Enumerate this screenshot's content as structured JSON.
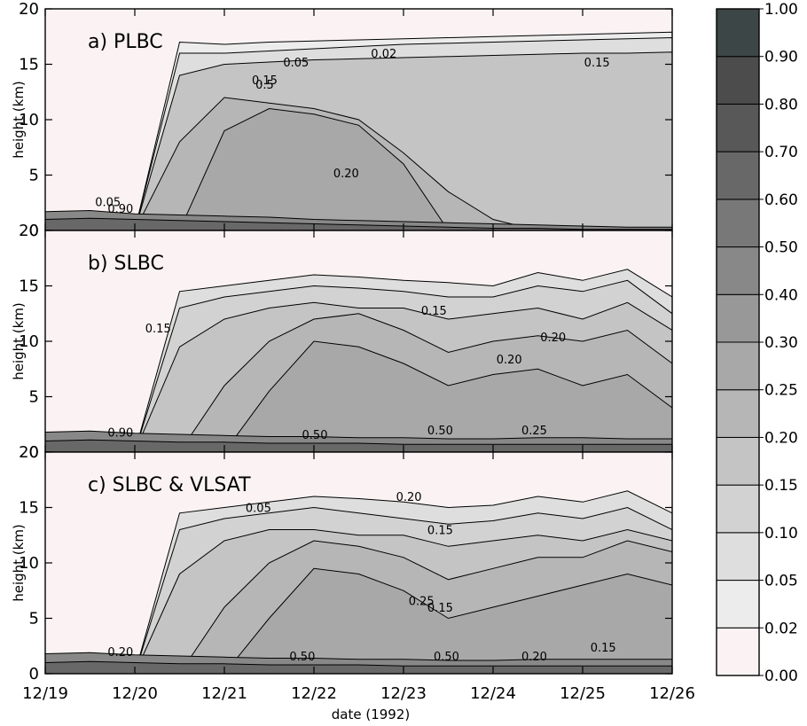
{
  "chart_data": {
    "type": "contour",
    "xlabel": "date (1992)",
    "ylabel": "height (km)",
    "x_ticks": [
      "12/19",
      "12/20",
      "12/21",
      "12/22",
      "12/23",
      "12/24",
      "12/25",
      "12/26"
    ],
    "xlim": [
      "12/19",
      "12/26"
    ],
    "y_ticks": [
      "0",
      "5",
      "10",
      "15",
      "20"
    ],
    "ylim": [
      0,
      20
    ],
    "colorbar": {
      "levels": [
        "0.00",
        "0.02",
        "0.05",
        "0.10",
        "0.15",
        "0.20",
        "0.25",
        "0.30",
        "0.40",
        "0.50",
        "0.60",
        "0.70",
        "0.80",
        "0.90",
        "1.00"
      ],
      "colors": [
        "#fbf3f3",
        "#ececec",
        "#dedede",
        "#d2d2d2",
        "#c4c4c4",
        "#b6b6b6",
        "#a8a8a8",
        "#989898",
        "#888888",
        "#787878",
        "#686868",
        "#585858",
        "#4c4c4c",
        "#3d4646"
      ]
    },
    "panels": [
      {
        "title": "a)   PLBC",
        "contour_labels": [
          "0.05",
          "0.02",
          "0.15",
          "0.15",
          "0.5",
          "0.20",
          "0.05",
          "0.90"
        ],
        "layers": [
          {
            "level": "0.02",
            "top_km": [
              0,
              0,
              0,
              17.0,
              16.8,
              17.0,
              17.1,
              17.2,
              17.3,
              17.4,
              17.5,
              17.6,
              17.7,
              17.8,
              17.9
            ]
          },
          {
            "level": "0.05",
            "top_km": [
              0,
              0,
              0,
              16.0,
              16.0,
              16.2,
              16.4,
              16.6,
              16.8,
              16.9,
              17.0,
              17.1,
              17.2,
              17.3,
              17.4
            ]
          },
          {
            "level": "0.15",
            "top_km": [
              0,
              0,
              0,
              14.0,
              15.0,
              15.2,
              15.4,
              15.5,
              15.6,
              15.7,
              15.8,
              15.9,
              16.0,
              16.0,
              16.1
            ]
          },
          {
            "level": "0.20",
            "top_km": [
              0,
              0,
              0,
              8.0,
              12.0,
              11.5,
              11.0,
              10.0,
              7.0,
              3.5,
              1.0,
              0,
              0,
              0,
              0
            ]
          },
          {
            "level": "0.25",
            "top_km": [
              0,
              0,
              0,
              0,
              9.0,
              11.0,
              10.5,
              9.5,
              6.0,
              0,
              0,
              0,
              0,
              0,
              0
            ]
          },
          {
            "level": "0.40",
            "top_km": [
              1.7,
              1.8,
              1.5,
              1.4,
              1.3,
              1.2,
              1.0,
              0.9,
              0.8,
              0.7,
              0.6,
              0.5,
              0.4,
              0.3,
              0.3
            ]
          },
          {
            "level": "0.60",
            "top_km": [
              1.0,
              1.1,
              1.0,
              0.9,
              0.8,
              0.7,
              0.6,
              0.5,
              0.4,
              0.3,
              0.2,
              0.2,
              0.1,
              0.1,
              0.1
            ]
          }
        ]
      },
      {
        "title": "b)   SLBC",
        "contour_labels": [
          "0.15",
          "0.20",
          "0.15",
          "0.20",
          "0.50",
          "0.50",
          "0.25",
          "0.90"
        ],
        "layers": [
          {
            "level": "0.05",
            "top_km": [
              0,
              0,
              0,
              14.5,
              15.0,
              15.5,
              16.0,
              15.8,
              15.5,
              15.3,
              15.0,
              16.2,
              15.5,
              16.5,
              14.0
            ]
          },
          {
            "level": "0.10",
            "top_km": [
              0,
              0,
              0,
              13.0,
              14.0,
              14.5,
              15.0,
              14.8,
              14.5,
              14.0,
              14.0,
              15.0,
              14.5,
              15.5,
              12.5
            ]
          },
          {
            "level": "0.15",
            "top_km": [
              0,
              0,
              0,
              9.5,
              12.0,
              13.0,
              13.5,
              13.0,
              13.0,
              12.0,
              12.5,
              13.0,
              12.0,
              13.5,
              11.0
            ]
          },
          {
            "level": "0.20",
            "top_km": [
              0,
              0,
              0,
              0,
              6.0,
              10.0,
              12.0,
              12.5,
              11.0,
              9.0,
              10.0,
              10.5,
              10.0,
              11.0,
              8.0
            ]
          },
          {
            "level": "0.25",
            "top_km": [
              0,
              0,
              0,
              0,
              0,
              5.5,
              10.0,
              9.5,
              8.0,
              6.0,
              7.0,
              7.5,
              6.0,
              7.0,
              4.0
            ]
          },
          {
            "level": "0.40",
            "top_km": [
              1.8,
              1.9,
              1.7,
              1.6,
              1.5,
              1.4,
              1.4,
              1.3,
              1.3,
              1.2,
              1.2,
              1.3,
              1.3,
              1.2,
              1.2
            ]
          },
          {
            "level": "0.60",
            "top_km": [
              1.0,
              1.1,
              1.0,
              0.9,
              0.9,
              0.8,
              0.8,
              0.8,
              0.7,
              0.7,
              0.7,
              0.7,
              0.7,
              0.7,
              0.7
            ]
          }
        ]
      },
      {
        "title": "c)   SLBC & VLSAT",
        "contour_labels": [
          "0.05",
          "0.20",
          "0.15",
          "0.25",
          "0.15",
          "0.50",
          "0.50",
          "0.20",
          "0.15",
          "0.20"
        ],
        "layers": [
          {
            "level": "0.05",
            "top_km": [
              0,
              0,
              0,
              14.5,
              15.0,
              15.5,
              16.0,
              15.8,
              15.5,
              15.0,
              15.2,
              16.0,
              15.5,
              16.5,
              14.5
            ]
          },
          {
            "level": "0.10",
            "top_km": [
              0,
              0,
              0,
              13.0,
              14.0,
              14.5,
              15.0,
              14.5,
              14.0,
              13.5,
              13.8,
              14.5,
              14.0,
              15.0,
              13.0
            ]
          },
          {
            "level": "0.15",
            "top_km": [
              0,
              0,
              0,
              9.0,
              12.0,
              13.0,
              13.0,
              12.5,
              12.5,
              11.5,
              12.0,
              12.5,
              12.0,
              13.0,
              12.0
            ]
          },
          {
            "level": "0.20",
            "top_km": [
              0,
              0,
              0,
              0,
              6.0,
              10.0,
              12.0,
              11.5,
              10.5,
              8.5,
              9.5,
              10.5,
              10.5,
              12.0,
              11.0
            ]
          },
          {
            "level": "0.25",
            "top_km": [
              0,
              0,
              0,
              0,
              0,
              5.0,
              9.5,
              9.0,
              7.5,
              5.0,
              6.0,
              7.0,
              8.0,
              9.0,
              8.0
            ]
          },
          {
            "level": "0.40",
            "top_km": [
              1.8,
              1.9,
              1.7,
              1.6,
              1.5,
              1.4,
              1.4,
              1.3,
              1.3,
              1.2,
              1.2,
              1.3,
              1.3,
              1.3,
              1.3
            ]
          },
          {
            "level": "0.60",
            "top_km": [
              1.0,
              1.1,
              1.0,
              0.9,
              0.9,
              0.8,
              0.8,
              0.8,
              0.7,
              0.7,
              0.7,
              0.7,
              0.7,
              0.7,
              0.7
            ]
          }
        ]
      }
    ]
  }
}
